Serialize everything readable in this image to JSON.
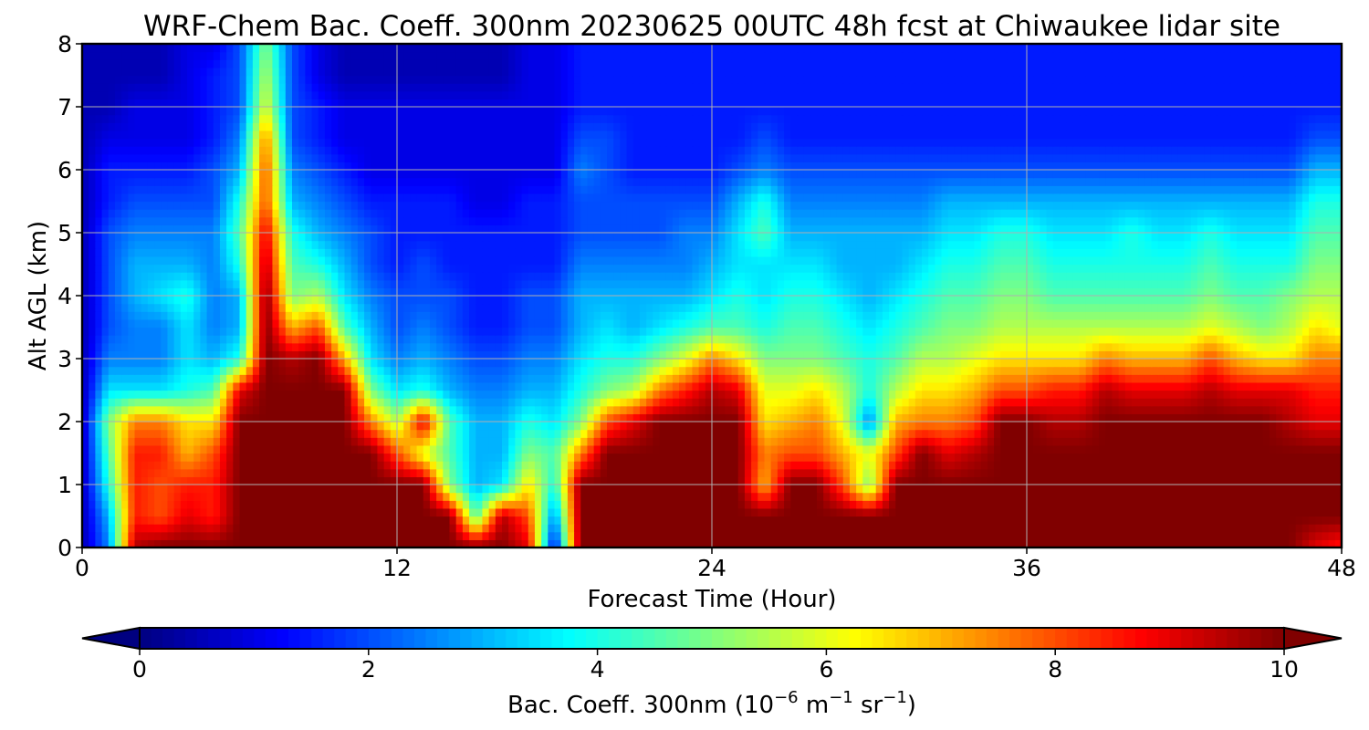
{
  "chart_data": {
    "type": "heatmap",
    "subtype": "filled-contour time-height cross-section",
    "title": "WRF-Chem Bac. Coeff. 300nm  20230625 00UTC 48h fcst at Chiwaukee lidar site",
    "xlabel": "Forecast Time (Hour)",
    "ylabel": "Alt AGL (km)",
    "xlim": [
      0,
      48
    ],
    "ylim": [
      0,
      8
    ],
    "xticks": [
      0,
      12,
      24,
      36,
      48
    ],
    "yticks": [
      0,
      1,
      2,
      3,
      4,
      5,
      6,
      7,
      8
    ],
    "grid": true,
    "colormap": "jet",
    "colorbar": {
      "orientation": "horizontal",
      "label_main": "Bac. Coeff. 300nm  (10",
      "label_exp1": "−6",
      "label_m": " m",
      "label_exp2": "−1",
      "label_sr": " sr",
      "label_exp3": "−1",
      "label_close": ")",
      "range": [
        0,
        10
      ],
      "ticks": [
        0,
        2,
        4,
        6,
        8,
        10
      ],
      "extend": "both"
    },
    "hours": [
      0,
      1,
      2,
      3,
      4,
      5,
      6,
      7,
      8,
      9,
      10,
      11,
      12,
      13,
      14,
      15,
      16,
      17,
      18,
      19,
      20,
      21,
      22,
      23,
      24,
      25,
      26,
      27,
      28,
      29,
      30,
      31,
      32,
      33,
      34,
      35,
      36,
      37,
      38,
      39,
      40,
      41,
      42,
      43,
      44,
      45,
      46,
      47,
      48
    ],
    "heights_km": [
      0,
      0.5,
      1,
      1.5,
      2,
      2.5,
      3,
      3.5,
      4,
      4.5,
      5,
      5.5,
      6,
      6.5,
      7,
      7.5,
      8
    ],
    "values": [
      [
        0.5,
        2.5,
        9.5,
        10,
        10,
        10,
        10,
        10,
        10,
        10,
        10,
        10,
        10,
        10,
        10,
        10,
        10,
        9,
        1.0,
        10,
        10,
        10,
        10,
        10,
        10,
        10,
        10,
        10,
        10,
        10,
        10,
        10,
        10,
        10,
        10,
        10,
        10,
        10,
        10,
        10,
        10,
        10,
        10,
        10,
        10,
        10,
        10,
        9,
        8.5
      ],
      [
        0.5,
        3,
        8.5,
        8,
        9,
        8.5,
        10,
        10,
        10,
        10,
        10,
        10,
        10,
        10,
        10,
        4.5,
        9.5,
        8,
        2.5,
        10,
        10,
        10,
        10,
        10,
        10,
        10,
        10,
        10,
        10,
        10,
        10,
        10,
        10,
        10,
        10,
        10,
        10,
        10,
        10,
        10,
        10,
        10,
        10,
        10,
        10,
        10,
        10,
        10,
        10
      ],
      [
        0.5,
        4,
        8.5,
        8,
        8.5,
        8.5,
        10,
        10,
        10,
        10,
        10,
        10,
        10,
        10,
        5,
        3,
        3.5,
        6.5,
        4,
        10,
        10,
        10,
        10,
        10,
        10,
        10,
        7,
        10,
        10,
        8,
        5,
        10,
        10,
        10,
        10,
        10,
        10,
        10,
        10,
        10,
        10,
        10,
        10,
        10,
        10,
        10,
        10,
        10,
        10
      ],
      [
        0.5,
        4.5,
        8.5,
        8.5,
        7,
        8,
        10,
        10,
        10,
        10,
        10,
        10,
        8,
        6,
        4.5,
        3,
        3,
        5,
        4.5,
        7.5,
        10,
        10,
        10,
        10,
        10,
        10,
        7.5,
        8,
        8,
        7,
        6,
        8,
        10,
        9,
        9.5,
        10,
        10,
        10,
        10,
        10,
        10,
        10,
        10,
        10,
        10,
        10,
        10,
        10,
        10
      ],
      [
        0.5,
        5,
        7.5,
        7.5,
        6.5,
        6.5,
        10,
        10,
        10,
        10,
        10,
        7.5,
        5.5,
        9,
        4.5,
        3,
        3,
        4,
        3.5,
        5,
        8,
        9,
        10,
        10,
        10,
        10,
        6.5,
        7,
        7.5,
        6,
        2.5,
        7,
        7.5,
        7.5,
        8,
        10,
        10,
        9.5,
        9.5,
        10,
        10,
        10,
        10,
        10,
        10,
        10,
        9.5,
        9,
        9
      ],
      [
        0.5,
        3.5,
        3.5,
        3.5,
        4,
        4.5,
        9,
        10,
        10,
        10,
        10,
        5,
        3.5,
        4,
        3,
        2.5,
        2.5,
        3,
        3,
        4,
        5,
        5.5,
        7.5,
        8.5,
        9.5,
        9,
        6,
        6,
        6.5,
        5.5,
        4,
        5.5,
        6.5,
        6.5,
        7,
        8,
        8,
        8.5,
        8.5,
        9.5,
        9,
        9,
        9,
        9.5,
        9,
        9,
        9,
        8.5,
        8.5
      ],
      [
        0.5,
        2.5,
        2.5,
        2.5,
        3.5,
        3,
        4,
        10,
        9.5,
        10,
        7,
        3.5,
        2.5,
        3,
        2.5,
        2,
        2,
        2.5,
        2.5,
        3.5,
        4,
        4,
        5,
        6,
        7.5,
        6.5,
        5,
        5,
        5,
        4.5,
        4,
        4.5,
        5.5,
        5.5,
        6,
        6.5,
        6.5,
        6.5,
        6.5,
        7.5,
        7,
        7,
        7,
        8,
        7,
        6.5,
        6.5,
        7.5,
        7.5
      ],
      [
        0.5,
        2,
        2.5,
        2.5,
        3.5,
        2.5,
        3,
        10,
        7,
        8,
        4.5,
        3,
        2,
        2.5,
        2,
        1.5,
        1.5,
        2,
        2,
        3,
        3.5,
        3,
        3.5,
        4,
        4.5,
        4.5,
        4,
        4.5,
        4.5,
        4,
        3.5,
        4,
        4.5,
        5,
        5,
        5.5,
        5.5,
        5.5,
        5.5,
        5.5,
        5.5,
        5.5,
        5.5,
        6,
        5.5,
        5,
        5.5,
        6.5,
        6
      ],
      [
        0.5,
        2,
        3,
        3.5,
        4,
        2.5,
        3,
        10,
        5,
        5.5,
        3.5,
        2.5,
        2,
        2,
        2,
        1.5,
        1.5,
        2,
        2,
        3,
        3,
        3,
        3,
        3,
        3.5,
        4,
        3.5,
        4,
        4,
        3.5,
        3,
        3.5,
        4,
        4.5,
        4.5,
        5,
        5,
        4.5,
        4.5,
        4.5,
        4.5,
        4.5,
        4.5,
        5,
        4.5,
        4.5,
        5,
        5.5,
        5.5
      ],
      [
        0.5,
        2,
        3,
        3,
        3,
        2.5,
        4,
        9.5,
        4.5,
        4,
        3,
        2,
        1.5,
        2,
        1.5,
        1.5,
        1.5,
        1.5,
        1.5,
        2.5,
        2.5,
        2.5,
        2.5,
        2.5,
        3,
        3.5,
        3.5,
        3.5,
        3.5,
        3,
        3,
        3,
        3.5,
        4,
        4,
        4.5,
        4.5,
        4,
        4,
        4,
        4,
        4,
        4,
        4.5,
        4,
        4,
        4,
        5,
        5
      ],
      [
        0.5,
        2,
        2.5,
        2.5,
        2.5,
        2.5,
        4.5,
        9,
        4,
        3,
        2.5,
        2,
        1.5,
        1.5,
        1.5,
        1.5,
        1.5,
        1.5,
        1.5,
        2,
        2,
        2,
        2,
        2.5,
        2.5,
        3.5,
        4.5,
        3,
        3,
        3,
        3,
        3,
        3,
        3.5,
        3.5,
        4,
        4,
        3.5,
        3.5,
        3.5,
        4,
        3.5,
        3.5,
        4,
        3.5,
        3.5,
        3.5,
        4.5,
        4.5
      ],
      [
        0.5,
        1.5,
        2,
        2,
        2,
        2,
        4,
        8,
        3,
        2.5,
        2,
        1.5,
        1.5,
        1.5,
        1.5,
        1,
        1,
        1.5,
        1.5,
        2,
        2,
        2,
        2,
        2,
        2,
        3,
        4,
        2.5,
        2.5,
        2.5,
        2.5,
        2.5,
        2.5,
        3,
        3,
        3,
        3,
        3,
        3,
        3,
        3,
        3,
        3,
        3,
        3,
        3,
        3,
        4,
        4
      ],
      [
        0.5,
        1.5,
        1.5,
        1.5,
        1.5,
        2,
        3,
        8,
        2.5,
        2,
        1.5,
        1,
        1,
        1,
        1,
        1,
        1,
        1,
        1,
        2.5,
        2,
        1.5,
        1.5,
        1.5,
        1.5,
        2,
        2.5,
        2,
        2,
        2,
        2,
        2,
        2,
        2,
        2,
        2,
        2,
        2,
        2,
        2,
        2,
        2,
        2,
        2,
        2,
        2,
        2,
        3,
        3
      ],
      [
        0.5,
        1,
        1,
        1,
        1,
        1.5,
        2.5,
        7.5,
        2,
        1.5,
        1,
        1,
        1,
        1,
        1,
        1,
        1,
        1,
        1,
        2,
        2,
        1.5,
        1.5,
        1.5,
        1.5,
        1.5,
        2,
        1.5,
        1.5,
        1.5,
        1.5,
        1.5,
        1.5,
        1.5,
        1.5,
        1.5,
        1.5,
        1.5,
        1.5,
        1.5,
        1.5,
        1.5,
        1.5,
        1.5,
        1.5,
        1.5,
        1.5,
        2,
        2
      ],
      [
        0.5,
        0.5,
        1,
        1,
        1,
        1.5,
        2,
        6,
        2,
        1.5,
        1,
        1,
        1,
        1,
        1,
        1,
        1,
        1,
        1,
        1.5,
        1.5,
        1.5,
        1.5,
        1.5,
        1.5,
        1.5,
        1.5,
        1.5,
        1.5,
        1.5,
        1.5,
        1.5,
        1.5,
        1.5,
        1.5,
        1.5,
        1.5,
        1.5,
        1.5,
        1.5,
        1.5,
        1.5,
        1.5,
        1.5,
        1.5,
        1.5,
        1.5,
        1.5,
        1.5
      ],
      [
        0.5,
        0.5,
        0.5,
        0.5,
        1,
        1.5,
        2,
        5.5,
        2,
        1,
        0.5,
        0.5,
        0.5,
        0.5,
        0.5,
        0.5,
        0.5,
        1,
        1,
        1.5,
        1.5,
        1.5,
        1.5,
        1.5,
        1.5,
        1.5,
        1.5,
        1.5,
        1.5,
        1.5,
        1.5,
        1.5,
        1.5,
        1.5,
        1.5,
        1.5,
        1.5,
        1.5,
        1.5,
        1.5,
        1.5,
        1.5,
        1.5,
        1.5,
        1.5,
        1.5,
        1.5,
        1.5,
        1.5
      ],
      [
        0.5,
        0.5,
        0.5,
        0.5,
        1,
        1,
        2,
        5,
        2,
        1,
        0.5,
        0.5,
        0.5,
        0.5,
        0.5,
        0.5,
        0.5,
        1,
        1,
        1.5,
        1.5,
        1.5,
        1.5,
        1.5,
        1.5,
        1.5,
        1.5,
        1.5,
        1.5,
        1.5,
        1.5,
        1.5,
        1.5,
        1.5,
        1.5,
        1.5,
        1.5,
        1.5,
        1.5,
        1.5,
        1.5,
        1.5,
        1.5,
        1.5,
        1.5,
        1.5,
        1.5,
        1.5,
        1.5
      ]
    ]
  }
}
